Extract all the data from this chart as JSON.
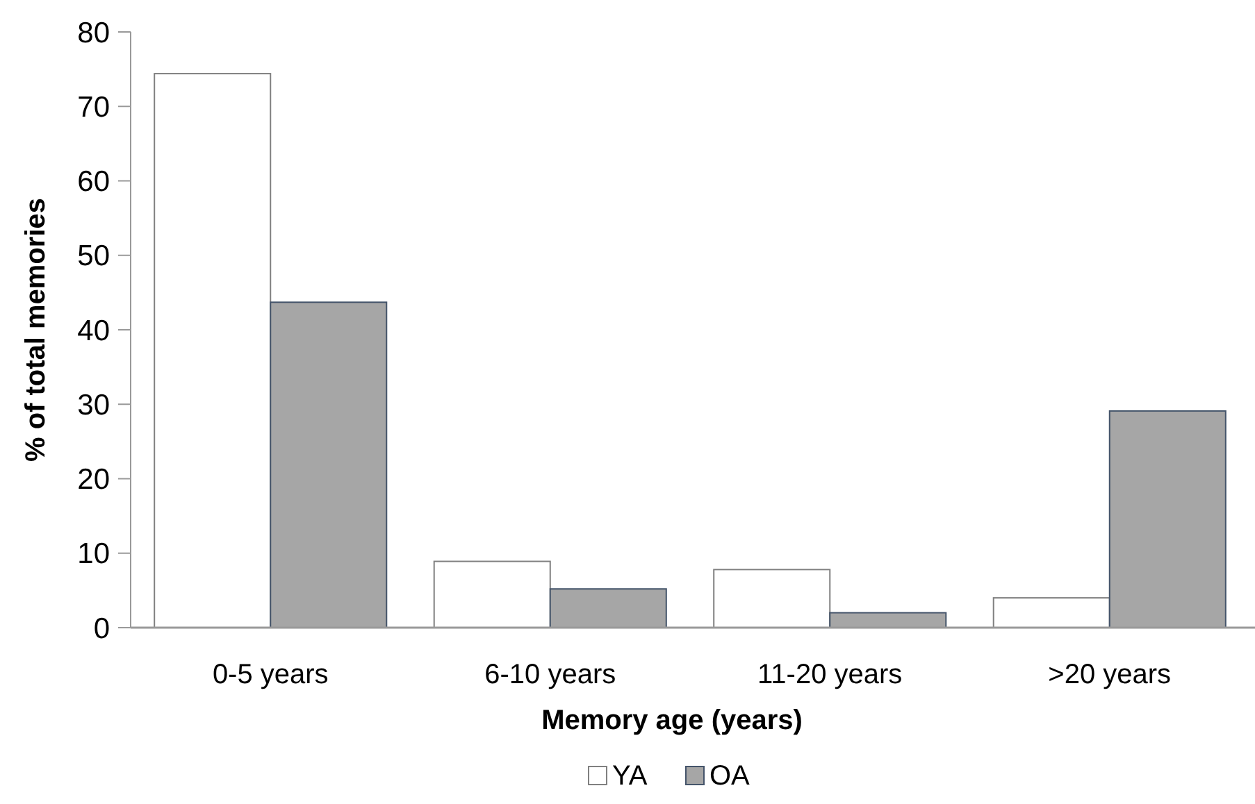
{
  "chart_data": {
    "type": "bar",
    "xlabel": "Memory age (years)",
    "ylabel": "% of total memories",
    "categories": [
      "0-5 years",
      "6-10 years",
      "11-20 years",
      ">20 years"
    ],
    "series": [
      {
        "name": "YA",
        "color": "#ffffff",
        "values": [
          74.4,
          8.9,
          7.8,
          4.0
        ]
      },
      {
        "name": "OA",
        "color": "#a6a6a6",
        "values": [
          43.7,
          5.2,
          2.0,
          29.1
        ]
      }
    ],
    "ylim": [
      0,
      80
    ],
    "yticks": [
      0,
      10,
      20,
      30,
      40,
      50,
      60,
      70,
      80
    ],
    "grid": false,
    "legend": "bottom"
  }
}
